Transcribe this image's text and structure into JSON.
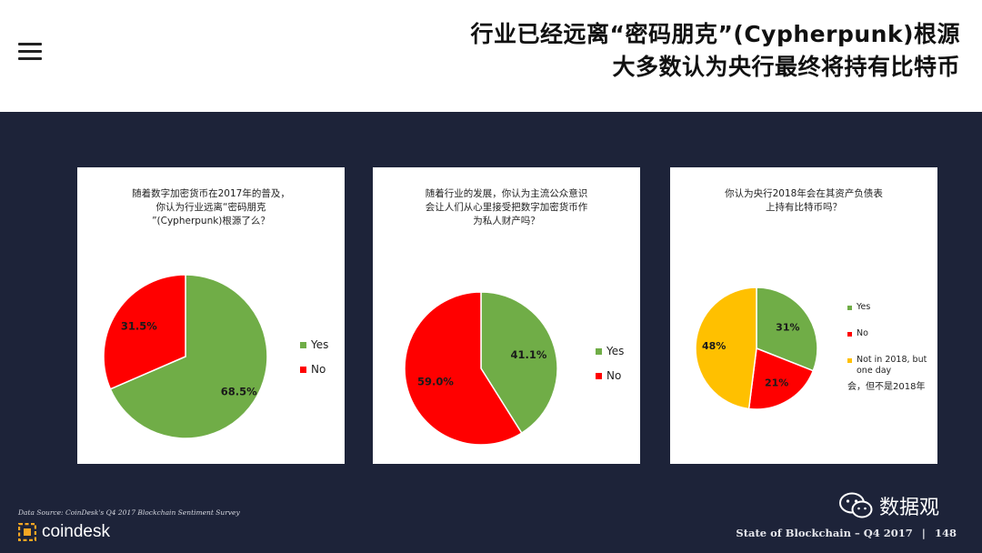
{
  "header": {
    "title_line1": "行业已经远离“密码朋克”(Cypherpunk)根源",
    "title_line2": "大多数认为央行最终将持有比特币"
  },
  "colors": {
    "green": "#70ad47",
    "red": "#ff0000",
    "yellow": "#ffc000",
    "navy": "#1d2339"
  },
  "chart_data": [
    {
      "type": "pie",
      "title": "随着数字加密货币在2017年的普及，你认为行业远离“密码朋克”(Cypherpunk)根源了么？",
      "title_lines": [
        "随着数字加密货币在2017年的普及，",
        "你认为行业远离“密码朋克",
        "”(Cypherpunk)根源了么？"
      ],
      "slices": [
        {
          "label": "Yes",
          "value": 68.5,
          "value_label": "68.5%",
          "color": "#70ad47"
        },
        {
          "label": "No",
          "value": 31.5,
          "value_label": "31.5%",
          "color": "#ff0000"
        }
      ],
      "start_angle_deg": 0
    },
    {
      "type": "pie",
      "title": "随着行业的发展，你认为主流公众意识会让人们从心里接受把数字加密货币作为私人财产吗？",
      "title_lines": [
        "随着行业的发展，你认为主流公众意识",
        "会让人们从心里接受把数字加密货币作",
        "为私人财产吗？"
      ],
      "slices": [
        {
          "label": "Yes",
          "value": 41.1,
          "value_label": "41.1%",
          "color": "#70ad47"
        },
        {
          "label": "No",
          "value": 59.0,
          "value_label": "59.0%",
          "color": "#ff0000"
        }
      ],
      "start_angle_deg": 0
    },
    {
      "type": "pie",
      "title": "你认为央行2018年会在其资产负债表上持有比特币吗？",
      "title_lines": [
        "你认为央行2018年会在其资产负债表",
        "上持有比特币吗？"
      ],
      "slices": [
        {
          "label": "Yes",
          "value": 31,
          "value_label": "31%",
          "color": "#70ad47"
        },
        {
          "label": "No",
          "value": 21,
          "value_label": "21%",
          "color": "#ff0000"
        },
        {
          "label": "Not in 2018, but one day",
          "label_cn": "会，但不是2018年",
          "value": 48,
          "value_label": "48%",
          "color": "#ffc000"
        }
      ],
      "start_angle_deg": 0
    }
  ],
  "footer": {
    "source": "Data Source: CoinDesk's Q4 2017 Blockchain Sentiment Survey",
    "brand": "coindesk",
    "report": "State of Blockchain – Q4 2017",
    "separator": "|",
    "page_number": "148",
    "wechat_account": "数据观"
  }
}
